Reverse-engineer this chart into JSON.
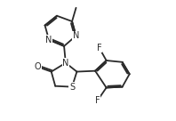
{
  "bg_color": "#ffffff",
  "line_color": "#2a2a2a",
  "line_width": 1.3,
  "font_size": 7.0,
  "xlim": [
    0.0,
    9.0
  ],
  "ylim": [
    0.5,
    8.0
  ]
}
